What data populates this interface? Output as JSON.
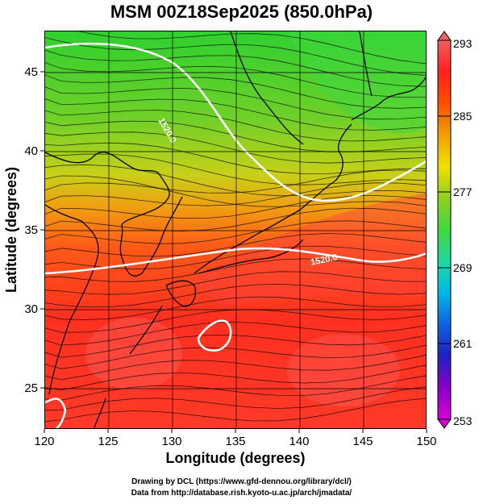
{
  "title": "MSM 00Z18Sep2025 (850.0hPa)",
  "xaxis": {
    "label": "Longitude (degrees)",
    "ticks": [
      120,
      125,
      130,
      135,
      140,
      145,
      150
    ],
    "range": [
      120,
      150
    ]
  },
  "yaxis": {
    "label": "Latitude  (degrees)",
    "ticks": [
      25,
      30,
      35,
      40,
      45
    ],
    "range": [
      22.4,
      47.6
    ]
  },
  "colorbar": {
    "min": 253,
    "max": 293,
    "labels": [
      293,
      285,
      277,
      269,
      261,
      253
    ],
    "stops": [
      "#d400d4",
      "#8a00c8",
      "#2020c0",
      "#1060e0",
      "#00b8e8",
      "#20d8a0",
      "#40d840",
      "#90d020",
      "#f0e000",
      "#f0a000",
      "#ff5000",
      "#ff2020",
      "#f06060"
    ]
  },
  "contour_labels": [
    "1520.0",
    "1520.0"
  ],
  "footer": {
    "line1": "Drawing by DCL (https://www.gfd-dennou.org/library/dcl/)",
    "line2": "Data from http://database.rish.kyoto-u.ac.jp/arch/jmadata/"
  },
  "chart_data": {
    "type": "heatmap",
    "title": "MSM 00Z18Sep2025 (850.0hPa)",
    "xlabel": "Longitude (degrees)",
    "ylabel": "Latitude  (degrees)",
    "xlim": [
      120,
      150
    ],
    "ylim": [
      22.4,
      47.6
    ],
    "colorbar_range": [
      253,
      293
    ],
    "grid": true
  }
}
